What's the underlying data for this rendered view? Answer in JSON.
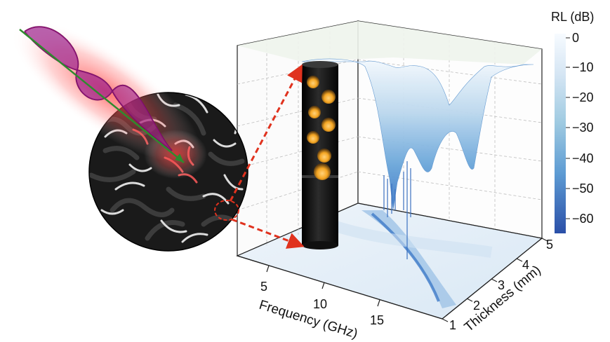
{
  "colorbar": {
    "title": "RL (dB)",
    "ticks": [
      "0",
      "−10",
      "−20",
      "−30",
      "−40",
      "−50",
      "−60"
    ],
    "values": [
      0,
      -10,
      -20,
      -30,
      -40,
      -50,
      -60
    ],
    "range": [
      -63,
      0
    ],
    "colors": [
      "#f7fbff",
      "#dbe9f6",
      "#9ecae1",
      "#6baed6",
      "#4292c6",
      "#2f6fc0",
      "#2a4fa8"
    ]
  },
  "axes": {
    "x": {
      "label": "Frequency (GHz)",
      "ticks": [
        "5",
        "10",
        "15"
      ],
      "values": [
        5,
        10,
        15
      ],
      "range": [
        2,
        18
      ]
    },
    "y": {
      "label": "Thickness (mm)",
      "ticks": [
        "1",
        "2",
        "3",
        "4",
        "5"
      ],
      "values": [
        1,
        2,
        3,
        4,
        5
      ],
      "range": [
        1,
        5
      ]
    }
  },
  "colors": {
    "wave": "#b0188a",
    "glow": "#ff2a2a",
    "arrow": "#2e8b2e",
    "dashed": "#e0321e",
    "sphere": "#f5a623",
    "rod": "#1a1a1a"
  },
  "illustration": {
    "wave_icon": "electromagnetic-wave-icon",
    "circle_icon": "nanofiber-network-icon",
    "rod_icon": "hollow-sphere-fiber-icon"
  }
}
